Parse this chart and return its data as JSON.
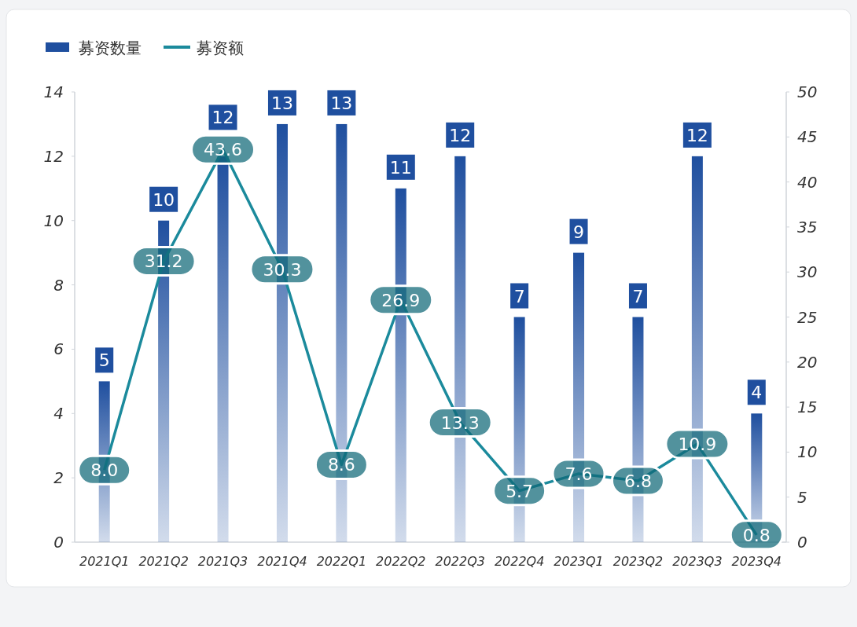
{
  "chart_data": {
    "type": "bar",
    "categories": [
      "2021Q1",
      "2021Q2",
      "2021Q3",
      "2021Q4",
      "2022Q1",
      "2022Q2",
      "2022Q3",
      "2022Q4",
      "2023Q1",
      "2023Q2",
      "2023Q3",
      "2023Q4"
    ],
    "series": [
      {
        "name": "募资数量",
        "color": "#1f4f9f",
        "values": [
          5,
          10,
          12,
          13,
          13,
          11,
          12,
          7,
          9,
          7,
          12,
          4
        ],
        "value_labels": [
          "5",
          "10",
          "12",
          "13",
          "13",
          "11",
          "12",
          "7",
          "9",
          "7",
          "12",
          "4"
        ]
      },
      {
        "name": "募资额",
        "type": "line",
        "axis": "y2",
        "color": "#1b8a9c",
        "values": [
          8.0,
          31.2,
          43.6,
          30.3,
          8.6,
          26.9,
          13.3,
          5.7,
          7.6,
          6.8,
          10.9,
          0.8
        ],
        "value_labels": [
          "8.0",
          "31.2",
          "43.6",
          "30.3",
          "8.6",
          "26.9",
          "13.3",
          "5.7",
          "7.6",
          "6.8",
          "10.9",
          "0.8"
        ]
      }
    ],
    "ylim": [
      0,
      14
    ],
    "yticks": [
      0,
      2,
      4,
      6,
      8,
      10,
      12,
      14
    ],
    "y2lim": [
      0,
      50
    ],
    "y2ticks": [
      0,
      5,
      10,
      15,
      20,
      25,
      30,
      35,
      40,
      45,
      50
    ],
    "legend": "top left",
    "grid": false
  }
}
